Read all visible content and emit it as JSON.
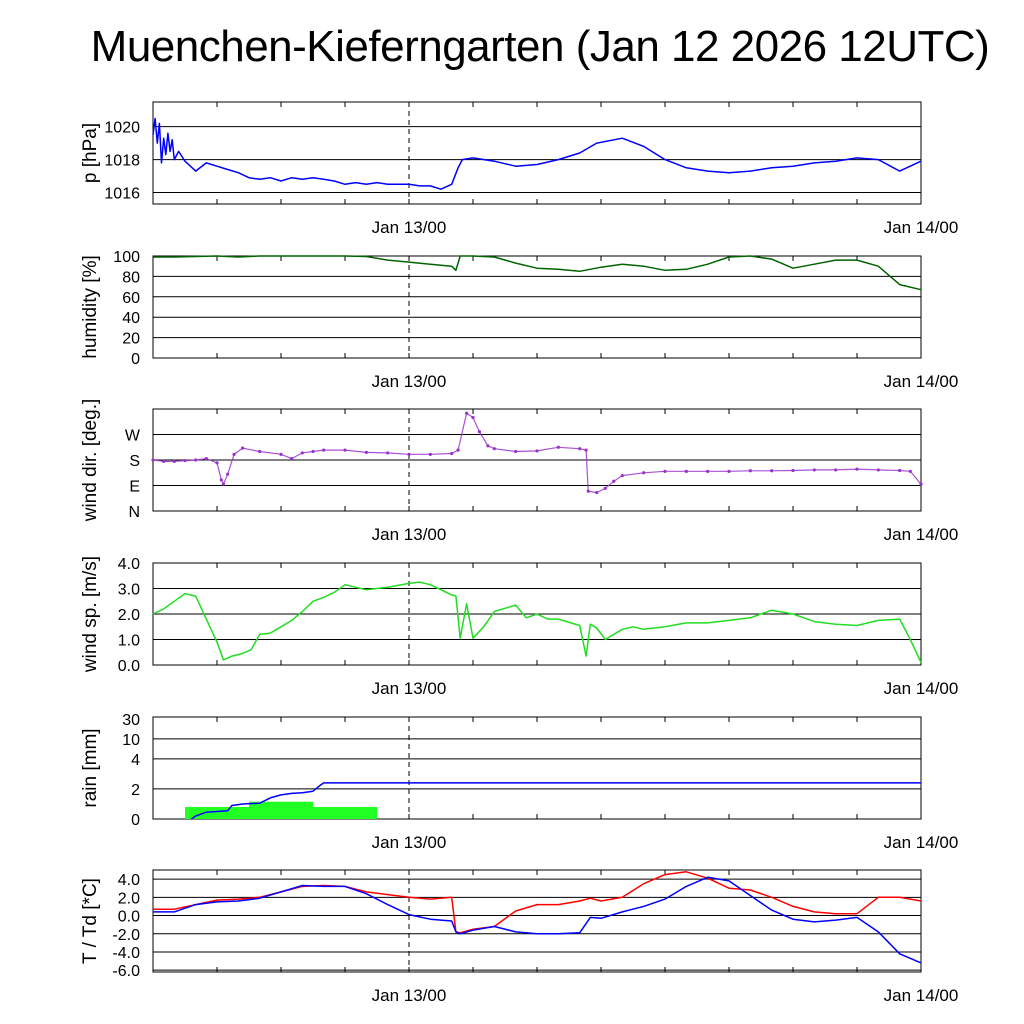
{
  "title": "Muenchen-Kieferngarten (Jan 12 2026 12UTC)",
  "x_ticks": [
    "Jan 13/00",
    "Jan 14/00"
  ],
  "chart_data": [
    {
      "type": "line",
      "id": "pressure",
      "ylabel": "p [hPa]",
      "ylim": [
        1015.3,
        1021.5
      ],
      "yticks": [
        1016,
        1018,
        1020
      ],
      "ytick_labels": [
        "1016",
        "1018",
        "1020"
      ],
      "xlim": [
        0,
        36
      ],
      "x_tick_positions": [
        12,
        36
      ],
      "x_tick_labels": [
        "Jan 13/00",
        "Jan 14/00"
      ],
      "series": [
        {
          "name": "pressure",
          "color": "#0000ff",
          "x": [
            0,
            0.1,
            0.2,
            0.3,
            0.4,
            0.5,
            0.6,
            0.7,
            0.8,
            0.9,
            1.0,
            1.2,
            1.5,
            2.0,
            2.5,
            3.0,
            3.5,
            4.0,
            4.5,
            5.0,
            5.5,
            6.0,
            6.5,
            7.0,
            7.5,
            8.0,
            8.5,
            9.0,
            9.5,
            10.0,
            10.5,
            11.0,
            11.5,
            12.0,
            12.5,
            13.0,
            13.5,
            14.0,
            14.3,
            14.5,
            15.0,
            16.0,
            17.0,
            18.0,
            19.0,
            20.0,
            20.8,
            22.0,
            23.0,
            24.0,
            25.0,
            26.0,
            27.0,
            28.0,
            29.0,
            30.0,
            31.0,
            32.0,
            33.0,
            34.0,
            35.0,
            36.0
          ],
          "y": [
            1019.5,
            1020.5,
            1019.0,
            1020.2,
            1017.8,
            1019.3,
            1018.3,
            1019.6,
            1018.5,
            1019.2,
            1018.0,
            1018.5,
            1017.9,
            1017.3,
            1017.8,
            1017.6,
            1017.4,
            1017.2,
            1016.9,
            1016.8,
            1016.9,
            1016.7,
            1016.9,
            1016.8,
            1016.9,
            1016.8,
            1016.7,
            1016.5,
            1016.6,
            1016.5,
            1016.6,
            1016.5,
            1016.5,
            1016.5,
            1016.4,
            1016.4,
            1016.2,
            1016.5,
            1017.5,
            1018.0,
            1018.1,
            1017.9,
            1017.6,
            1017.7,
            1018.0,
            1018.4,
            1019.0,
            1019.3,
            1018.8,
            1018.0,
            1017.5,
            1017.3,
            1017.2,
            1017.3,
            1017.5,
            1017.6,
            1017.8,
            1017.9,
            1018.1,
            1018.0,
            1017.3,
            1017.9
          ]
        }
      ]
    },
    {
      "type": "line",
      "id": "humidity",
      "ylabel": "humidity [%]",
      "ylim": [
        0,
        100
      ],
      "yticks": [
        0,
        20,
        40,
        60,
        80,
        100
      ],
      "ytick_labels": [
        "0",
        "20",
        "40",
        "60",
        "80",
        "100"
      ],
      "xlim": [
        0,
        36
      ],
      "x_tick_positions": [
        12,
        36
      ],
      "x_tick_labels": [
        "Jan 13/00",
        "Jan 14/00"
      ],
      "series": [
        {
          "name": "humidity",
          "color": "#006400",
          "x": [
            0,
            1,
            2,
            3,
            4,
            5,
            6,
            7,
            8,
            9,
            10,
            11,
            12,
            13,
            14,
            14.2,
            14.4,
            15,
            16,
            17,
            18,
            19,
            20,
            21,
            22,
            23,
            24,
            25,
            26,
            27,
            28,
            29,
            30,
            31,
            32,
            33,
            34,
            35,
            36
          ],
          "y": [
            99,
            99,
            99.5,
            100,
            99,
            100,
            100,
            100,
            100,
            100,
            99.5,
            96,
            94,
            92,
            90,
            86,
            100,
            100,
            99,
            93,
            88,
            87,
            85,
            89,
            92,
            90,
            86,
            87,
            92,
            99,
            100,
            97,
            88,
            92,
            96,
            96,
            90,
            72,
            67
          ]
        }
      ]
    },
    {
      "type": "scatter",
      "id": "wind_direction",
      "ylabel": "wind dir. [deg.]",
      "ylim": [
        0,
        360
      ],
      "yticks": [
        0,
        90,
        180,
        270
      ],
      "ytick_labels": [
        "N",
        "E",
        "S",
        "W"
      ],
      "xlim": [
        0,
        36
      ],
      "x_tick_positions": [
        12,
        36
      ],
      "x_tick_labels": [
        "Jan 13/00",
        "Jan 14/00"
      ],
      "series": [
        {
          "name": "wind direction",
          "color": "#9932cc",
          "x": [
            0,
            0.5,
            1,
            1.5,
            2,
            2.5,
            3,
            3.2,
            3.3,
            3.5,
            3.8,
            4.2,
            5,
            6,
            6.5,
            7,
            7.5,
            8,
            9,
            10,
            11,
            12,
            13,
            14,
            14.3,
            14.7,
            15,
            15.3,
            15.7,
            16,
            17,
            18,
            19,
            20,
            20.3,
            20.4,
            20.8,
            21.2,
            21.6,
            22,
            23,
            24,
            25,
            26,
            27,
            28,
            29,
            30,
            31,
            32,
            33,
            34,
            35,
            35.5,
            36
          ],
          "y": [
            180,
            175,
            175,
            178,
            180,
            185,
            170,
            110,
            95,
            130,
            200,
            222,
            210,
            200,
            185,
            205,
            210,
            215,
            215,
            207,
            205,
            200,
            200,
            203,
            215,
            345,
            330,
            280,
            230,
            220,
            210,
            212,
            225,
            220,
            215,
            70,
            65,
            80,
            105,
            125,
            135,
            140,
            140,
            140,
            140,
            142,
            142,
            143,
            145,
            145,
            148,
            145,
            143,
            140,
            95
          ]
        }
      ]
    },
    {
      "type": "line",
      "id": "wind_speed",
      "ylabel": "wind sp. [m/s]",
      "ylim": [
        0,
        4
      ],
      "yticks": [
        0,
        1,
        2,
        3,
        4
      ],
      "ytick_labels": [
        "0.0",
        "1.0",
        "2.0",
        "3.0",
        "4.0"
      ],
      "xlim": [
        0,
        36
      ],
      "x_tick_positions": [
        12,
        36
      ],
      "x_tick_labels": [
        "Jan 13/00",
        "Jan 14/00"
      ],
      "series": [
        {
          "name": "wind speed",
          "color": "#22dd22",
          "x": [
            0,
            0.5,
            1,
            1.5,
            2,
            2.5,
            3.0,
            3.3,
            3.7,
            4.2,
            4.6,
            5,
            5.5,
            6,
            6.5,
            7,
            7.5,
            8,
            8.5,
            9,
            10,
            11,
            12,
            12.5,
            13,
            14,
            14.2,
            14.4,
            14.7,
            15,
            15.5,
            16,
            17,
            17.5,
            18,
            18.5,
            19,
            20,
            20.3,
            20.5,
            20.8,
            21.2,
            22,
            22.5,
            23,
            24,
            25,
            26,
            27,
            28,
            29,
            30,
            31,
            32,
            33,
            34,
            35,
            35.5,
            36
          ],
          "y": [
            2.0,
            2.2,
            2.5,
            2.8,
            2.7,
            1.8,
            0.9,
            0.2,
            0.35,
            0.45,
            0.6,
            1.2,
            1.25,
            1.5,
            1.75,
            2.1,
            2.5,
            2.65,
            2.85,
            3.15,
            2.95,
            3.05,
            3.2,
            3.25,
            3.15,
            2.75,
            2.7,
            1.05,
            2.4,
            1.05,
            1.5,
            2.1,
            2.35,
            1.85,
            2.0,
            1.8,
            1.8,
            1.55,
            0.35,
            1.6,
            1.45,
            1.0,
            1.4,
            1.5,
            1.4,
            1.5,
            1.65,
            1.65,
            1.75,
            1.85,
            2.15,
            2.0,
            1.7,
            1.6,
            1.55,
            1.75,
            1.8,
            1.0,
            0.1
          ]
        }
      ]
    },
    {
      "type": "bar+line",
      "id": "rain",
      "ylabel": "rain [mm]",
      "ylim": [
        0,
        30
      ],
      "scale": "nonlinear",
      "yticks": [
        0,
        2,
        4,
        10,
        30
      ],
      "ytick_labels": [
        "0",
        "2",
        "4",
        "10",
        "30"
      ],
      "xlim": [
        0,
        36
      ],
      "x_tick_positions": [
        12,
        36
      ],
      "x_tick_labels": [
        "Jan 13/00",
        "Jan 14/00"
      ],
      "bars": {
        "name": "hourly precipitation",
        "color": "#22ff22",
        "bins": [
          [
            1.5,
            4.5,
            0.8
          ],
          [
            4.5,
            7.5,
            1.15
          ],
          [
            7.5,
            10.5,
            0.8
          ]
        ]
      },
      "series": [
        {
          "name": "accumulated precipitation",
          "color": "#0000ff",
          "x": [
            1.8,
            2.0,
            2.5,
            3.0,
            3.5,
            3.7,
            4.2,
            5.0,
            5.5,
            6.0,
            6.5,
            7.0,
            7.5,
            7.8,
            8.0,
            36
          ],
          "y": [
            0.0,
            0.2,
            0.45,
            0.5,
            0.55,
            0.9,
            1.0,
            1.05,
            1.4,
            1.6,
            1.7,
            1.75,
            1.85,
            2.2,
            2.4,
            2.4
          ]
        }
      ]
    },
    {
      "type": "line",
      "id": "temperature_dewpoint",
      "ylabel": "T / Td [*C]",
      "ylim": [
        -6.2,
        5.0
      ],
      "yticks": [
        -6,
        -4,
        -2,
        0,
        2,
        4
      ],
      "ytick_labels": [
        "-6.0",
        "-4.0",
        "-2.0",
        "0.0",
        "2.0",
        "4.0"
      ],
      "xlim": [
        0,
        36
      ],
      "x_tick_positions": [
        12,
        36
      ],
      "x_tick_labels": [
        "Jan 13/00",
        "Jan 14/00"
      ],
      "series": [
        {
          "name": "temperature",
          "color": "#ff0000",
          "x": [
            0,
            1,
            2,
            3,
            4,
            5,
            6,
            7,
            8,
            9,
            10,
            11,
            12,
            13,
            14,
            14.2,
            14.4,
            15,
            16,
            17,
            18,
            19,
            20,
            20.5,
            21,
            22,
            23,
            24,
            25,
            26,
            27,
            28,
            29,
            30,
            31,
            32,
            33,
            34,
            35,
            36
          ],
          "y": [
            0.7,
            0.7,
            1.2,
            1.7,
            1.8,
            2.0,
            2.6,
            3.2,
            3.3,
            3.2,
            2.6,
            2.3,
            2.0,
            1.8,
            2.0,
            -1.8,
            -1.9,
            -1.5,
            -1.2,
            0.5,
            1.2,
            1.2,
            1.6,
            1.9,
            1.6,
            2.0,
            3.5,
            4.5,
            4.8,
            4.1,
            3.0,
            2.8,
            2.0,
            1.0,
            0.4,
            0.2,
            0.2,
            2.0,
            2.0,
            1.6
          ]
        },
        {
          "name": "dew point",
          "color": "#0000ff",
          "x": [
            0,
            1,
            2,
            3,
            4,
            5,
            6,
            7,
            8,
            9,
            10,
            11,
            12,
            13,
            14,
            14.2,
            14.4,
            15,
            16,
            17,
            18,
            19,
            20,
            20.5,
            21,
            22,
            23,
            24,
            25,
            26,
            27,
            28,
            29,
            30,
            31,
            32,
            33,
            34,
            35,
            36
          ],
          "y": [
            0.4,
            0.4,
            1.2,
            1.5,
            1.6,
            1.9,
            2.6,
            3.3,
            3.2,
            3.2,
            2.4,
            1.2,
            0.1,
            -0.4,
            -0.6,
            -1.8,
            -2.0,
            -1.6,
            -1.2,
            -1.8,
            -2.0,
            -2.0,
            -1.9,
            -0.2,
            -0.3,
            0.4,
            1.0,
            1.8,
            3.2,
            4.2,
            3.8,
            2.2,
            0.6,
            -0.4,
            -0.7,
            -0.5,
            -0.2,
            -1.8,
            -4.2,
            -5.2
          ]
        }
      ]
    }
  ]
}
